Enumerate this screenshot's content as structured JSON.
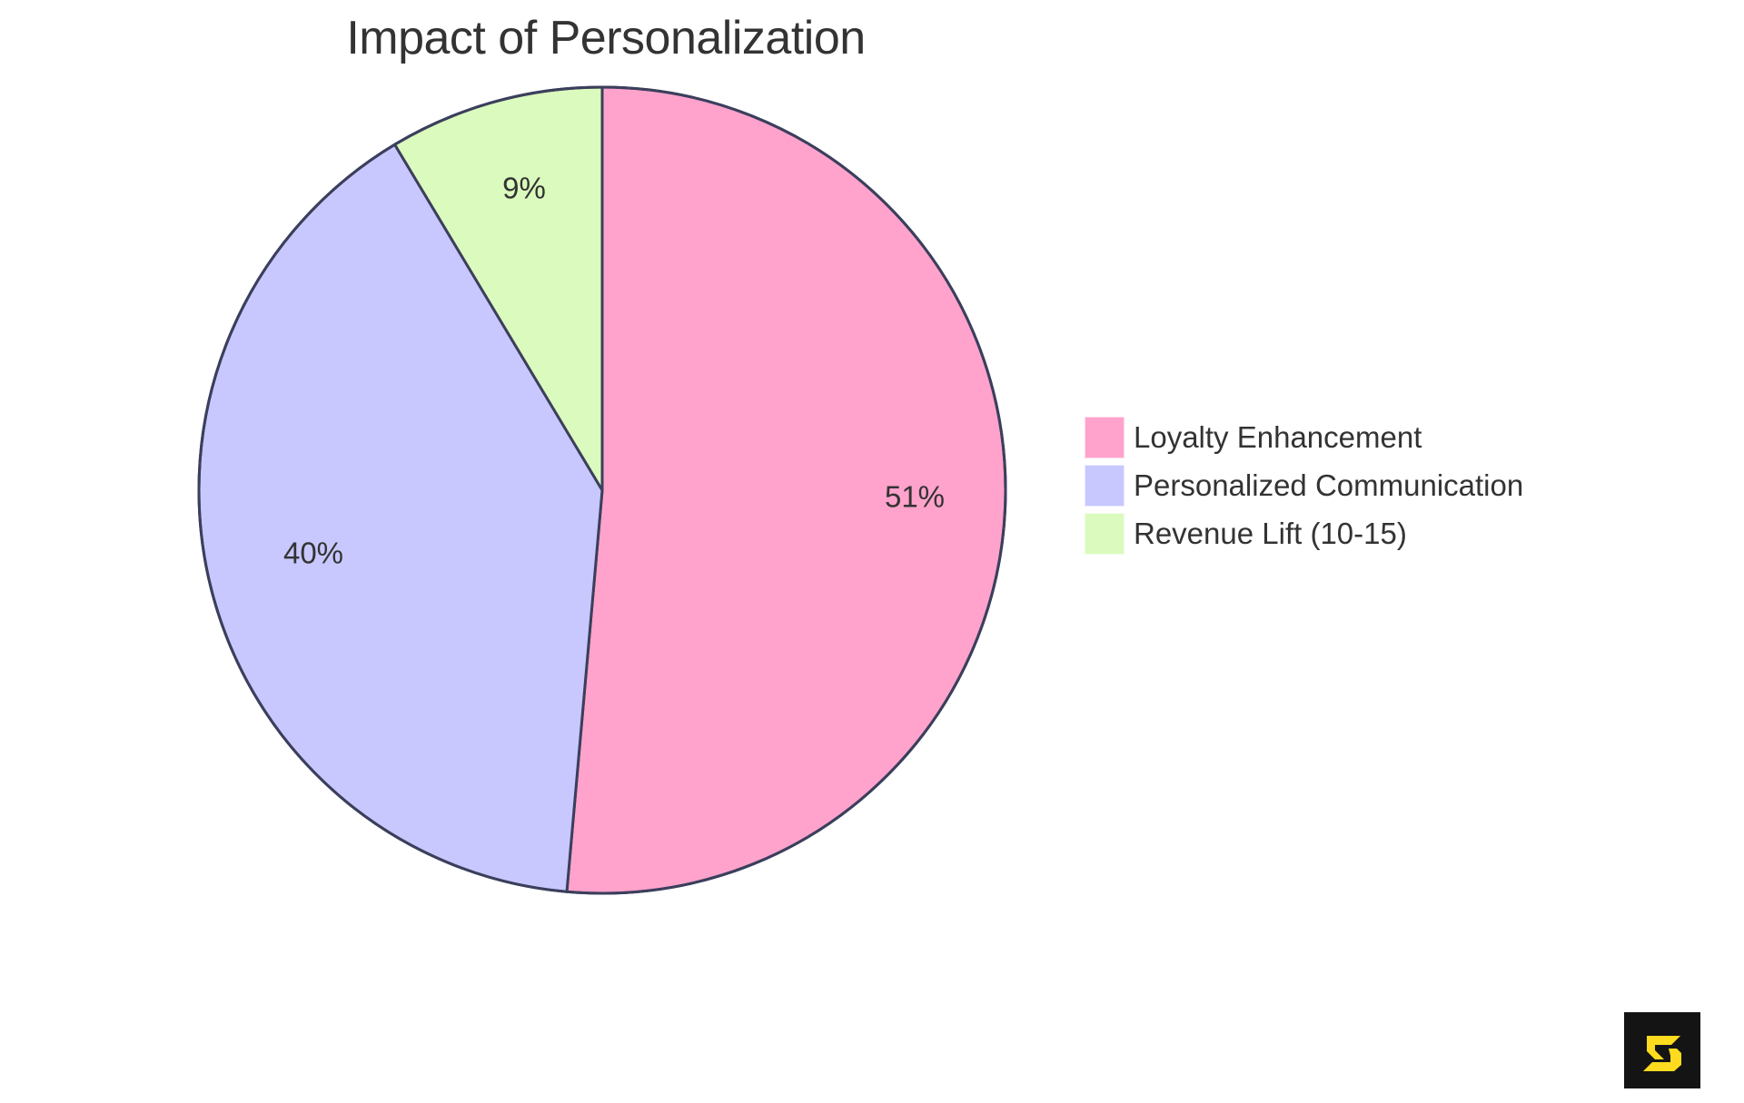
{
  "chart_data": {
    "type": "pie",
    "title": "Impact of Personalization",
    "categories": [
      "Loyalty Enhancement",
      "Personalized Communication",
      "Revenue Lift (10-15)"
    ],
    "values": [
      51,
      40,
      9
    ],
    "labels": [
      "51%",
      "40%",
      "9%"
    ],
    "colors": [
      "#FFA3CC",
      "#C8C8FF",
      "#DBFABD"
    ],
    "stroke_color": "#3B3F5C",
    "start_angle_deg": 0,
    "direction": "clockwise",
    "legend_position": "right"
  },
  "title": "Impact of Personalization",
  "legend": {
    "items": [
      {
        "label": "Loyalty Enhancement",
        "color": "#FFA3CC"
      },
      {
        "label": "Personalized Communication",
        "color": "#C8C8FF"
      },
      {
        "label": "Revenue Lift (10-15)",
        "color": "#DBFABD"
      }
    ]
  },
  "logo": {
    "icon": "s-logo-icon",
    "background": "#141414",
    "foreground": "#FFDB1F"
  }
}
